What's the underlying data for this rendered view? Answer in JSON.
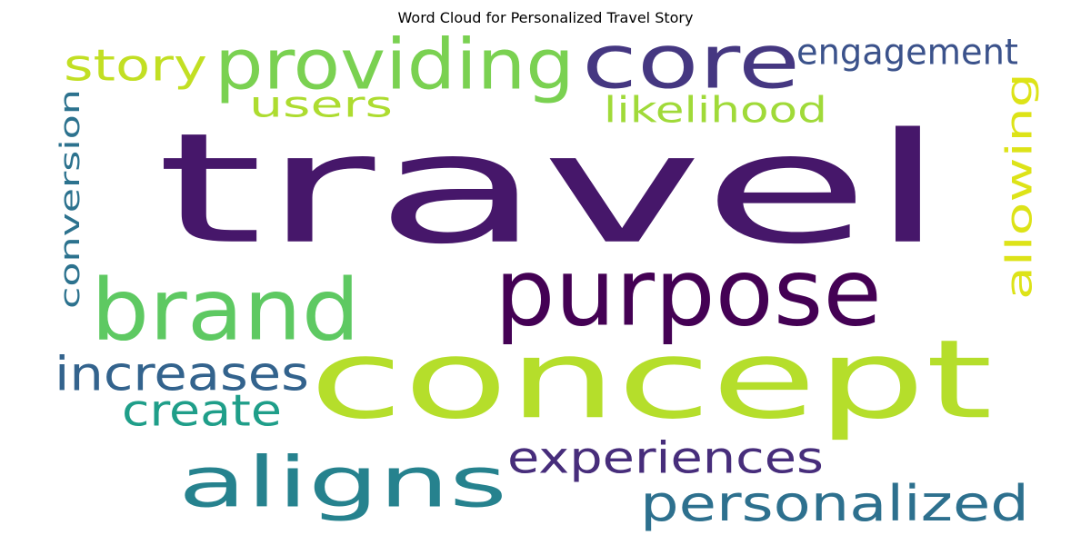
{
  "chart_data": {
    "type": "wordcloud",
    "title": "Word Cloud for Personalized Travel Story",
    "background": "#ffffff",
    "colormap": "viridis",
    "words": [
      {
        "text": "travel",
        "color": "#46176a"
      },
      {
        "text": "concept",
        "color": "#b5de2b"
      },
      {
        "text": "purpose",
        "color": "#440154"
      },
      {
        "text": "brand",
        "color": "#5ec962"
      },
      {
        "text": "core",
        "color": "#453781"
      },
      {
        "text": "aligns",
        "color": "#26828e"
      },
      {
        "text": "providing",
        "color": "#7ad151"
      },
      {
        "text": "personalized",
        "color": "#2d708e"
      },
      {
        "text": "experiences",
        "color": "#472d7b"
      },
      {
        "text": "increases",
        "color": "#33638d"
      },
      {
        "text": "story",
        "color": "#c2df23"
      },
      {
        "text": "allowing",
        "color": "#dde318"
      },
      {
        "text": "engagement",
        "color": "#3b528b"
      },
      {
        "text": "create",
        "color": "#1f9e89"
      },
      {
        "text": "users",
        "color": "#addc30"
      },
      {
        "text": "conversion",
        "color": "#2c728e"
      },
      {
        "text": "likelihood",
        "color": "#a0da39"
      }
    ]
  }
}
